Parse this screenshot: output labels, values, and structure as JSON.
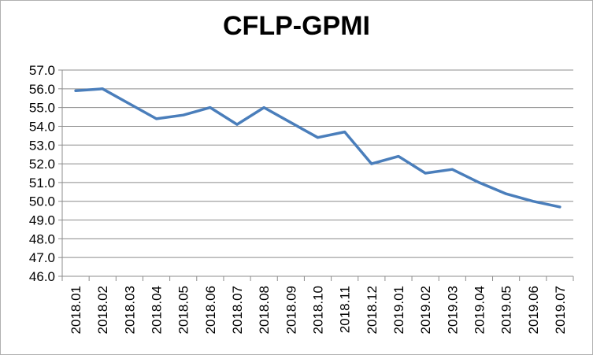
{
  "chart_data": {
    "type": "line",
    "title": "CFLP-GPMI",
    "xlabel": "",
    "ylabel": "",
    "categories": [
      "2018.01",
      "2018.02",
      "2018.03",
      "2018.04",
      "2018.05",
      "2018.06",
      "2018.07",
      "2018.08",
      "2018.09",
      "2018.10",
      "2018.11",
      "2018.12",
      "2019.01",
      "2019.02",
      "2019.03",
      "2019.04",
      "2019.05",
      "2019.06",
      "2019.07"
    ],
    "series": [
      {
        "values": [
          55.9,
          56.0,
          55.2,
          54.4,
          54.6,
          55.0,
          54.1,
          55.0,
          54.2,
          53.4,
          53.7,
          52.0,
          52.4,
          51.5,
          51.7,
          51.0,
          50.4,
          50.0,
          49.7
        ]
      }
    ],
    "yticks": [
      "46.0",
      "47.0",
      "48.0",
      "49.0",
      "50.0",
      "51.0",
      "52.0",
      "53.0",
      "54.0",
      "55.0",
      "56.0",
      "57.0"
    ],
    "ylim": [
      46,
      57
    ],
    "grid": true,
    "line_color": "#4a7ebb",
    "grid_color": "#8c8c8c"
  }
}
